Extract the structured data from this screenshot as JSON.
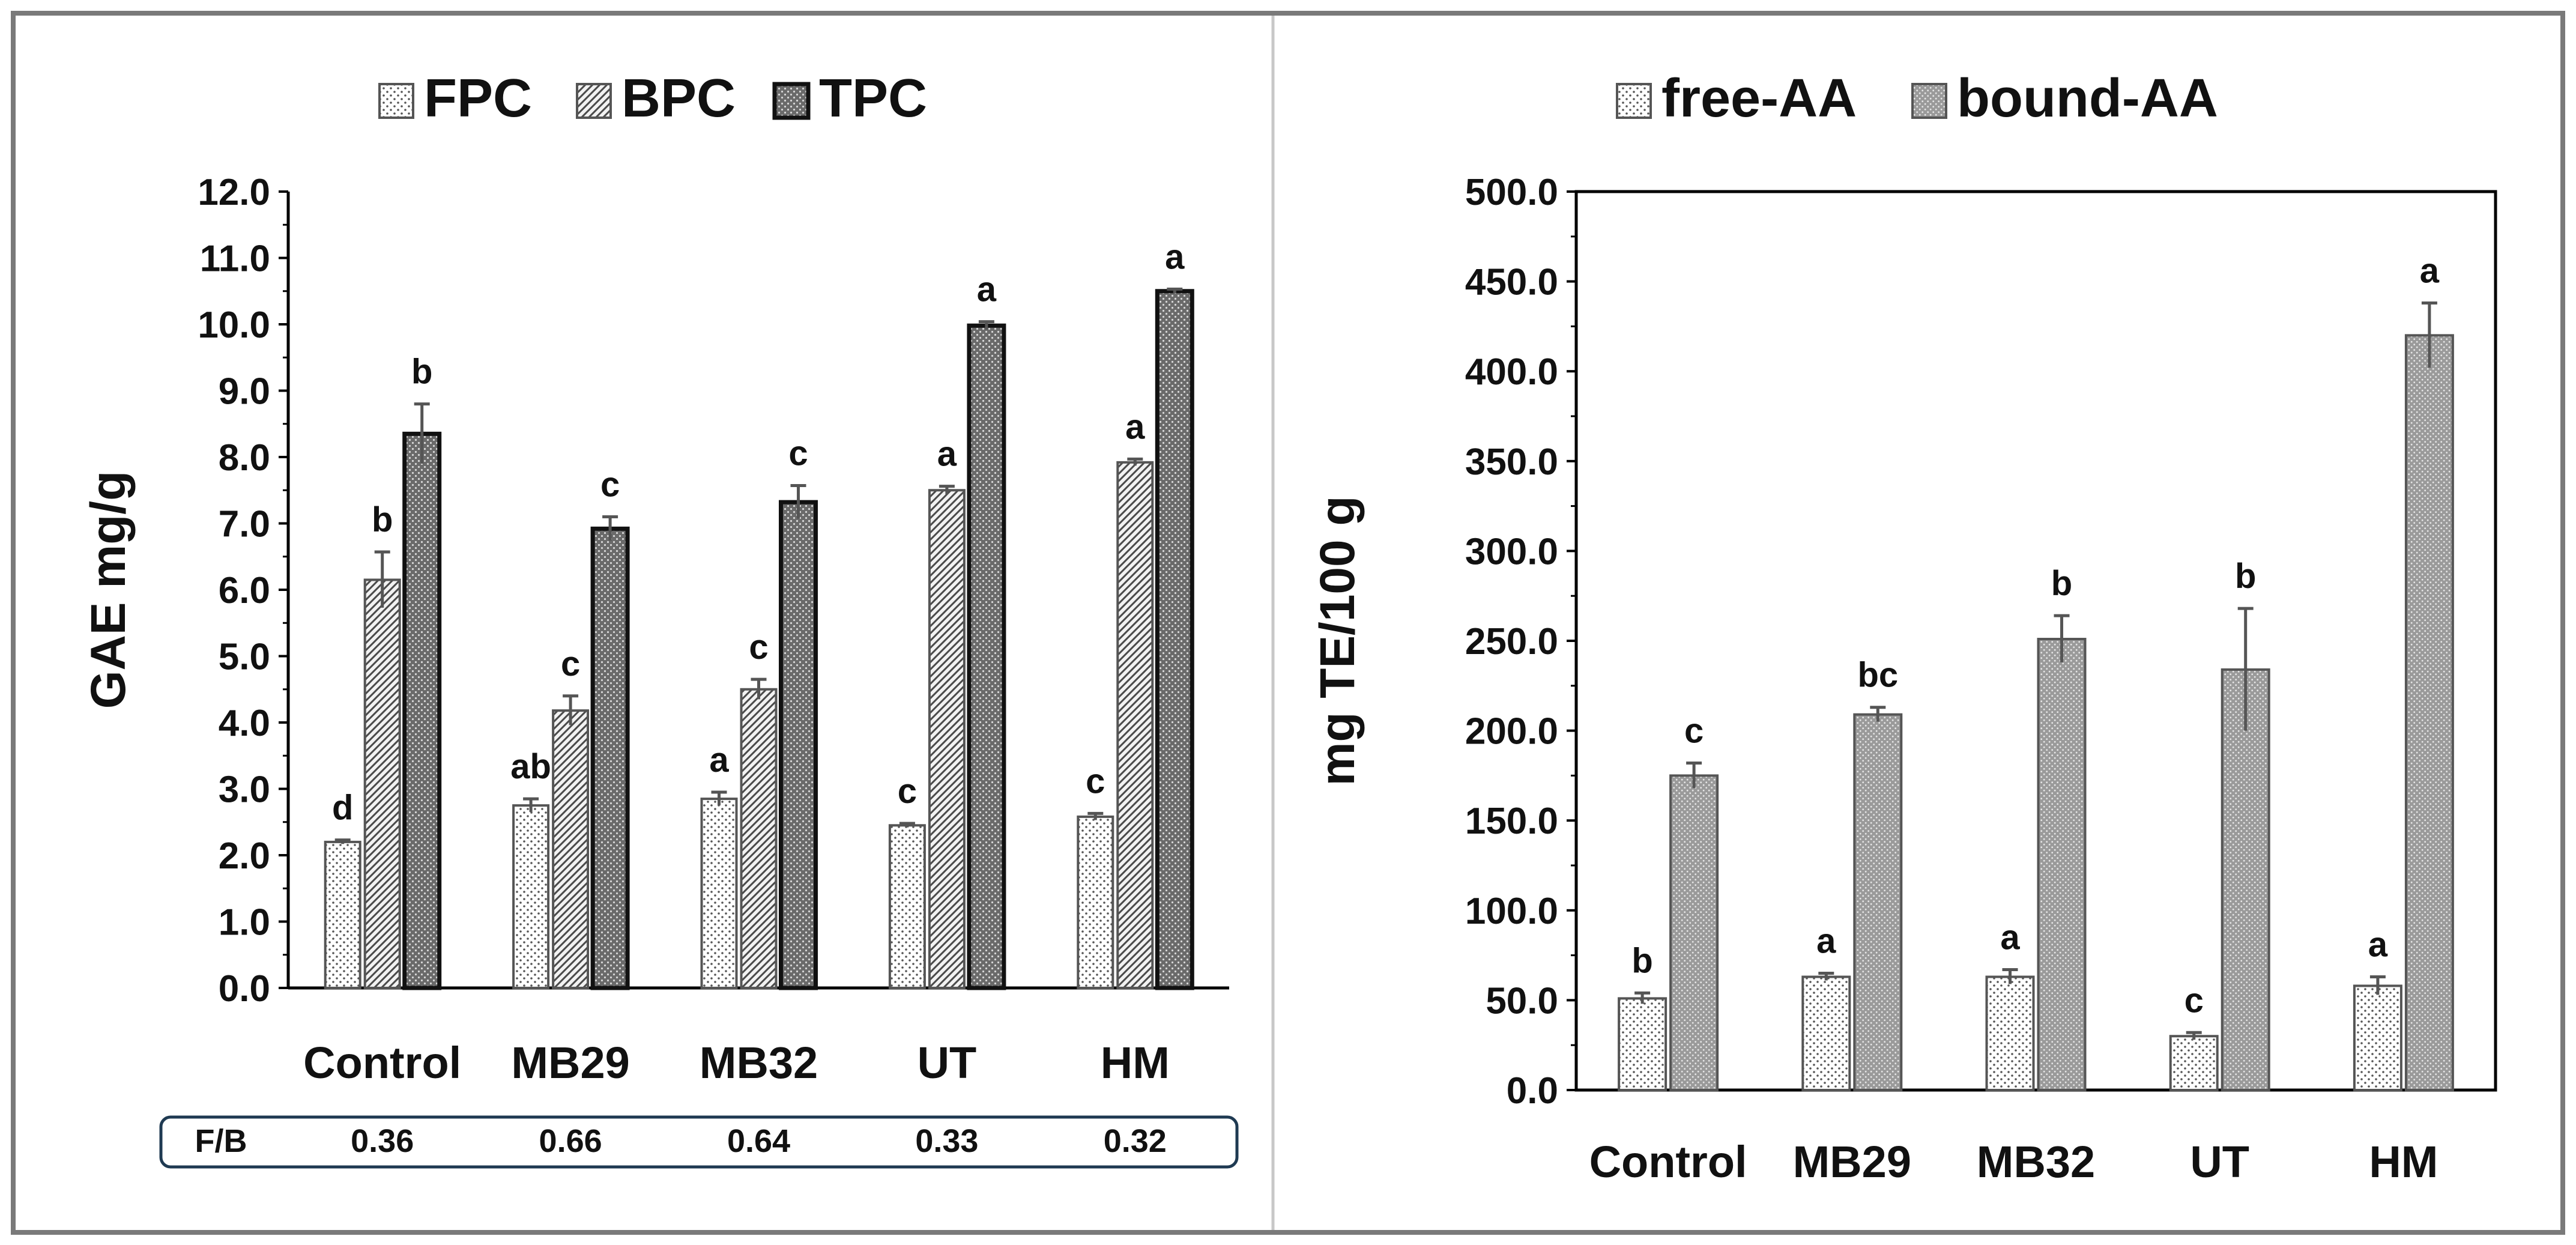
{
  "chart_data": [
    {
      "type": "bar",
      "title": "",
      "ylabel": "GAE mg/g",
      "xlabel": "",
      "ylim": [
        0,
        12
      ],
      "y_step": 1,
      "y_tick_decimals": 1,
      "legend_position": "top",
      "categories": [
        "Control",
        "MB29",
        "MB32",
        "UT",
        "HM"
      ],
      "series": [
        {
          "name": "FPC",
          "pattern": "dots",
          "values": [
            2.2,
            2.75,
            2.85,
            2.45,
            2.58
          ],
          "errors": [
            0.03,
            0.1,
            0.1,
            0.03,
            0.05
          ],
          "letters": [
            "d",
            "ab",
            "a",
            "c",
            "c"
          ]
        },
        {
          "name": "BPC",
          "pattern": "diag",
          "values": [
            6.15,
            4.18,
            4.5,
            7.5,
            7.92
          ],
          "errors": [
            0.42,
            0.22,
            0.15,
            0.06,
            0.05
          ],
          "letters": [
            "b",
            "c",
            "c",
            "a",
            "a"
          ]
        },
        {
          "name": "TPC",
          "pattern": "dark",
          "values": [
            8.35,
            6.92,
            7.32,
            9.98,
            10.5
          ],
          "errors": [
            0.45,
            0.18,
            0.25,
            0.06,
            0.03
          ],
          "letters": [
            "b",
            "c",
            "c",
            "a",
            "a"
          ]
        }
      ],
      "fb_table": {
        "label": "F/B",
        "values": [
          "0.36",
          "0.66",
          "0.64",
          "0.33",
          "0.32"
        ]
      }
    },
    {
      "type": "bar",
      "title": "",
      "ylabel": "mg TE/100 g",
      "xlabel": "",
      "ylim": [
        0,
        500
      ],
      "y_step": 50,
      "y_tick_decimals": 1,
      "legend_position": "top",
      "categories": [
        "Control",
        "MB29",
        "MB32",
        "UT",
        "HM"
      ],
      "series": [
        {
          "name": "free-AA",
          "pattern": "dots",
          "values": [
            51,
            63,
            63,
            30,
            58
          ],
          "errors": [
            3,
            2,
            4,
            2,
            5
          ],
          "letters": [
            "b",
            "a",
            "a",
            "c",
            "a"
          ]
        },
        {
          "name": "bound-AA",
          "pattern": "dense",
          "values": [
            175,
            209,
            251,
            234,
            420
          ],
          "errors": [
            7,
            4,
            13,
            34,
            18
          ],
          "letters": [
            "c",
            "bc",
            "b",
            "b",
            "a"
          ]
        }
      ]
    }
  ],
  "colors": {
    "border": "#7a7a7a",
    "axis": "#000000",
    "bar_edge": "#555555",
    "table_border": "#1f3a52",
    "divider": "#c8c8c8"
  }
}
